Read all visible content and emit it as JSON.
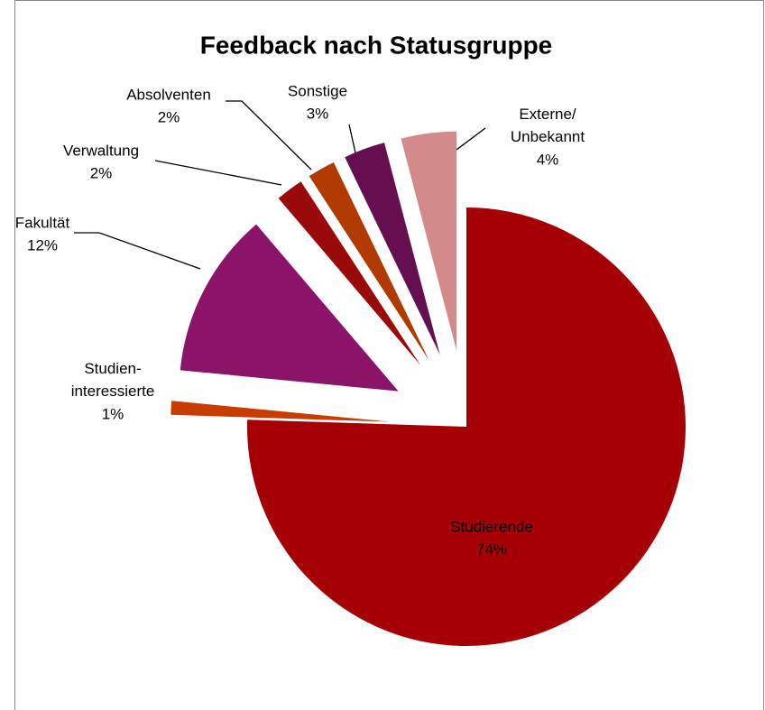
{
  "chart_data": {
    "type": "pie",
    "title": "Feedback nach Statusgruppe",
    "categories": [
      "Studierende",
      "Studien-\ninteressierte",
      "Fakultät",
      "Verwaltung",
      "Absolventen",
      "Sonstige",
      "Externe/\nUnbekannt"
    ],
    "values": [
      74,
      1,
      12,
      2,
      2,
      3,
      4
    ],
    "value_labels": [
      "74%",
      "1%",
      "12%",
      "2%",
      "2%",
      "3%",
      "4%"
    ],
    "colors": [
      "#a50006",
      "#c83c00",
      "#8b1469",
      "#9b0a0a",
      "#b03a00",
      "#650f50",
      "#d38a8a"
    ]
  }
}
